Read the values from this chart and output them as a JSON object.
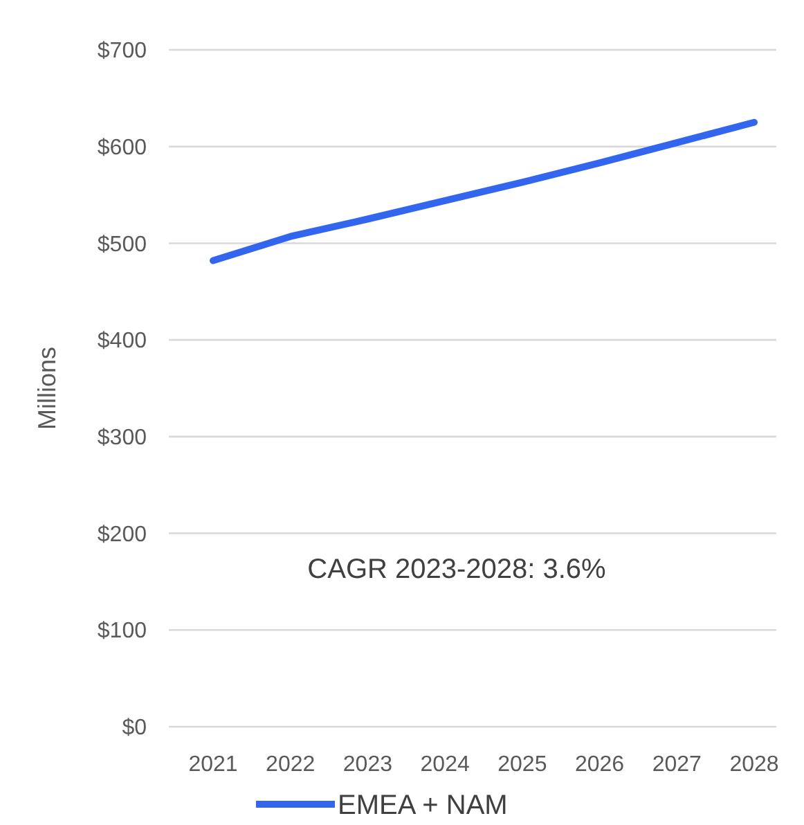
{
  "chart_data": {
    "type": "line",
    "ylabel": "Millions",
    "categories": [
      "2021",
      "2022",
      "2023",
      "2024",
      "2025",
      "2026",
      "2027",
      "2028"
    ],
    "series": [
      {
        "name": "EMEA + NAM",
        "color": "#3366ee",
        "values": [
          482,
          507,
          525,
          544,
          563,
          583,
          604,
          625
        ]
      }
    ],
    "ylim": [
      0,
      700
    ],
    "yticks": [
      {
        "value": 0,
        "label": "$0"
      },
      {
        "value": 100,
        "label": "$100"
      },
      {
        "value": 200,
        "label": "$200"
      },
      {
        "value": 300,
        "label": "$300"
      },
      {
        "value": 400,
        "label": "$400"
      },
      {
        "value": 500,
        "label": "$500"
      },
      {
        "value": 600,
        "label": "$600"
      },
      {
        "value": 700,
        "label": "$700"
      }
    ],
    "grid": "y",
    "legend": "bottom",
    "marker": "none",
    "line_style": "solid",
    "annotations": [
      "CAGR 2023-2028: 3.6%"
    ]
  }
}
